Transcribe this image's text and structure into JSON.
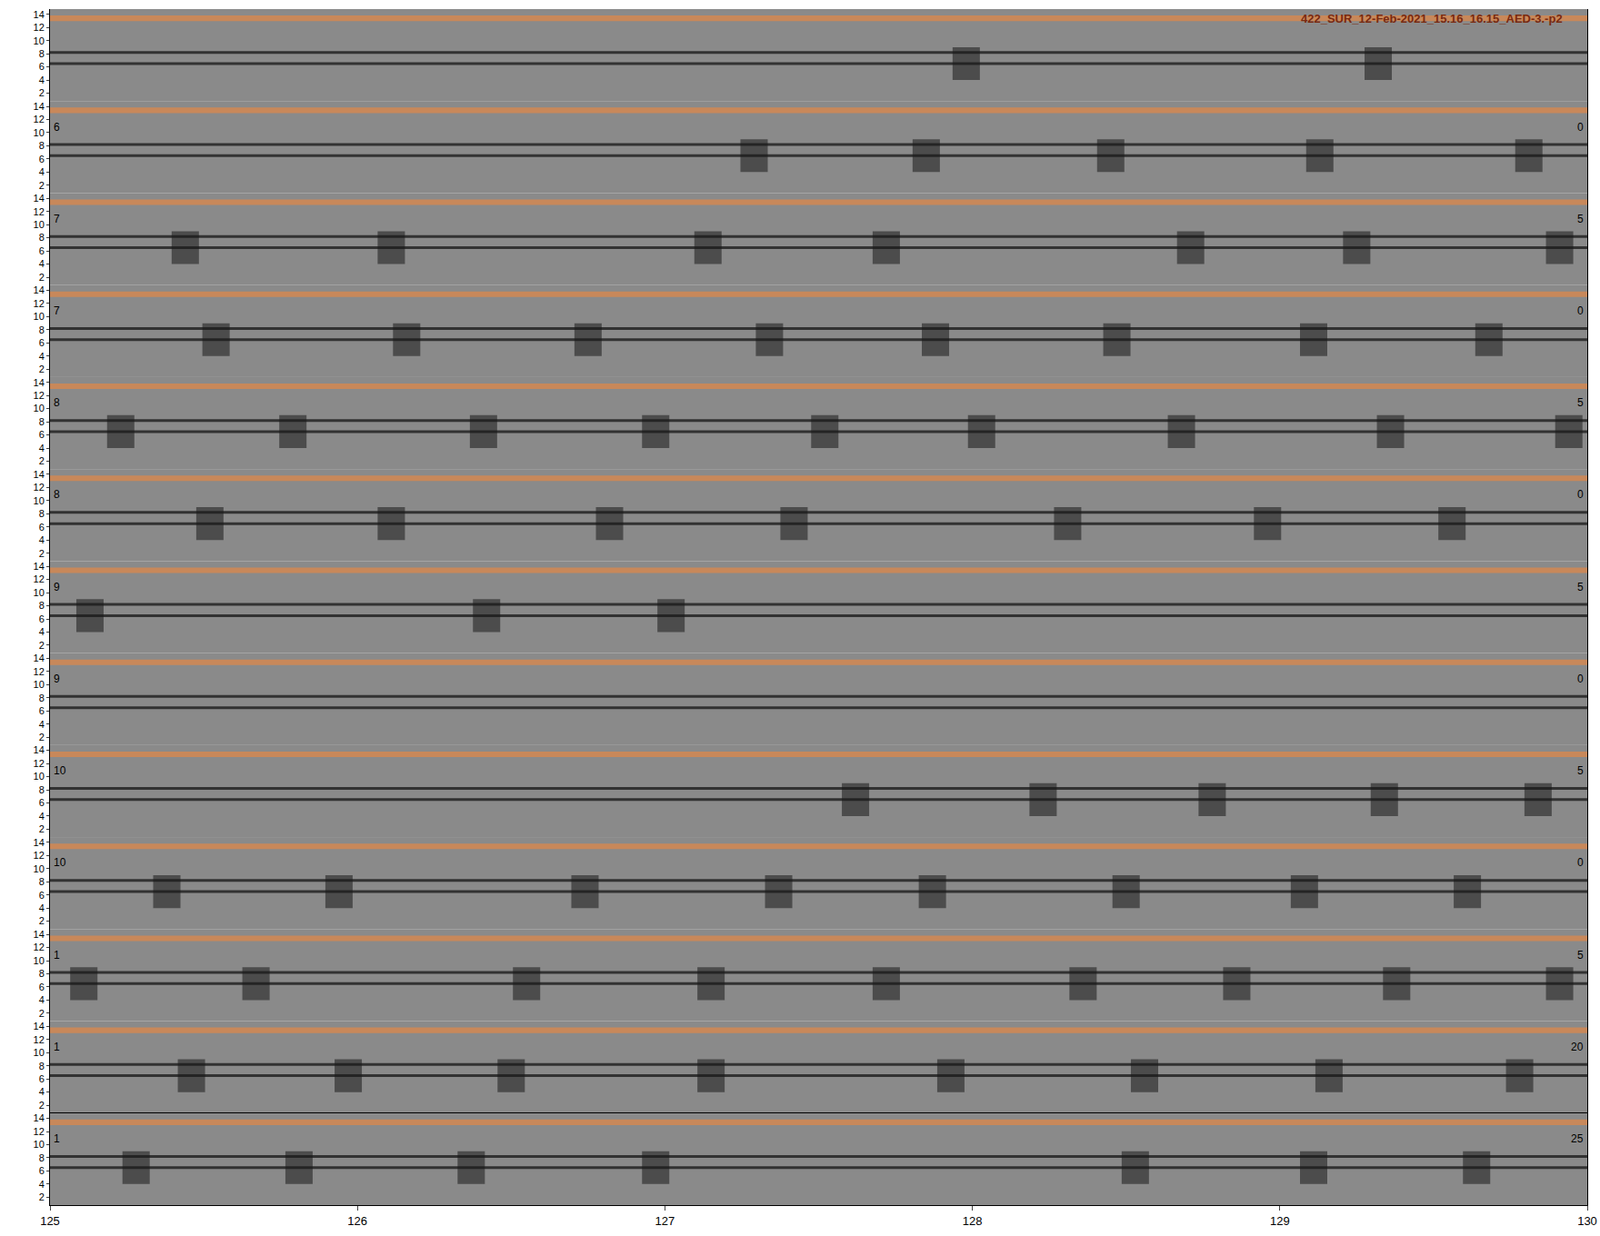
{
  "chart_data": {
    "type": "spectrogram",
    "title": "422_SUR_12-Feb-2021_15.16_16.15_AED-3.-p2",
    "xlim": [
      125,
      130
    ],
    "xticks": [
      125,
      126,
      127,
      128,
      129,
      130
    ],
    "ylim": [
      0.8,
      14.8
    ],
    "yticks": [
      2,
      4,
      6,
      8,
      10,
      12,
      14
    ],
    "bands": [
      6.5,
      8.2
    ],
    "call_range": [
      4,
      9
    ],
    "rows": [
      {
        "calls": [
          127.98,
          129.32
        ]
      },
      {
        "left": "6",
        "right": "0",
        "calls": [
          127.29,
          127.85,
          128.45,
          129.13,
          129.81
        ]
      },
      {
        "left": "7",
        "right": "5",
        "calls": [
          125.44,
          126.11,
          127.14,
          127.72,
          128.71,
          129.25,
          129.91
        ]
      },
      {
        "left": "7",
        "right": "0",
        "calls": [
          125.54,
          126.16,
          126.75,
          127.34,
          127.88,
          128.47,
          129.11,
          129.68
        ]
      },
      {
        "left": "8",
        "right": "5",
        "calls": [
          125.23,
          125.79,
          126.41,
          126.97,
          127.52,
          128.03,
          128.68,
          129.36,
          129.94
        ]
      },
      {
        "left": "8",
        "right": "0",
        "calls": [
          125.52,
          126.11,
          126.82,
          127.42,
          128.31,
          128.96,
          129.56
        ]
      },
      {
        "left": "9",
        "right": "5",
        "calls": [
          125.13,
          126.42,
          127.02
        ]
      },
      {
        "left": "9",
        "right": "0",
        "calls": []
      },
      {
        "left": "10",
        "right": "5",
        "calls": [
          127.62,
          128.23,
          128.78,
          129.34,
          129.84
        ]
      },
      {
        "left": "10",
        "right": "0",
        "calls": [
          125.38,
          125.94,
          126.74,
          127.37,
          127.87,
          128.5,
          129.08,
          129.61
        ]
      },
      {
        "left": "1",
        "right": "5",
        "calls": [
          125.11,
          125.67,
          126.55,
          127.15,
          127.72,
          128.36,
          128.86,
          129.38,
          129.91
        ]
      },
      {
        "left": "1",
        "right": "20",
        "calls": [
          125.46,
          125.97,
          126.5,
          127.15,
          127.93,
          128.56,
          129.16,
          129.78
        ]
      },
      {
        "left": "1",
        "right": "25",
        "calls": [
          125.28,
          125.81,
          126.37,
          126.97,
          128.53,
          129.11,
          129.64
        ]
      }
    ]
  }
}
